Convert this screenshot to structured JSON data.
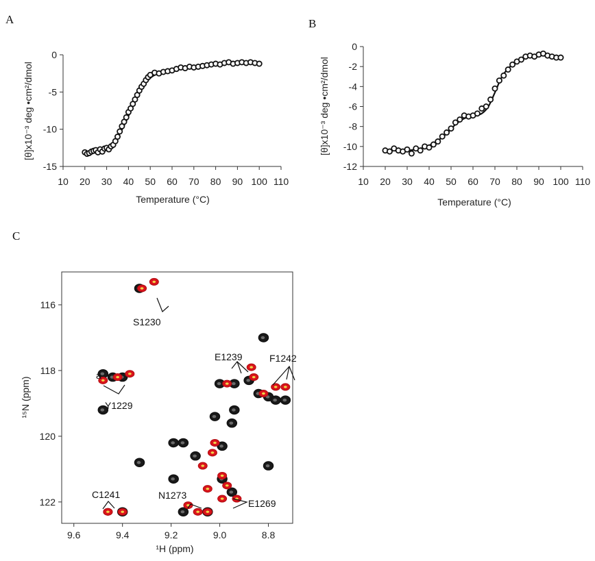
{
  "panel_labels": {
    "a": "A",
    "b": "B",
    "c": "C"
  },
  "colors": {
    "fit": "#111111",
    "marker": "#111111",
    "peak_dark": "#111111",
    "peak_red": "#d9141b",
    "peak_core": "#f0d24a"
  },
  "chart_data": [
    {
      "id": "A",
      "type": "scatter",
      "title": "",
      "xlabel": "Temperature (°C)",
      "ylabel": "[θ]x10⁻³ deg •cm²/dmol",
      "xlim": [
        10,
        110
      ],
      "ylim": [
        -15,
        0
      ],
      "xticks": [
        "10",
        "20",
        "30",
        "40",
        "50",
        "60",
        "70",
        "80",
        "90",
        "100",
        "110"
      ],
      "yticks": [
        "0",
        "-5",
        "-10",
        "-15"
      ],
      "grid": false,
      "series": [
        {
          "kind": "points",
          "x": [
            20,
            21,
            22,
            23,
            24,
            25,
            26,
            27,
            28,
            29,
            30,
            31,
            32,
            33,
            34,
            35,
            36,
            37,
            38,
            39,
            40,
            41,
            42,
            43,
            44,
            45,
            46,
            47,
            48,
            49,
            50,
            52,
            54,
            56,
            58,
            60,
            62,
            64,
            66,
            68,
            70,
            72,
            74,
            76,
            78,
            80,
            82,
            84,
            86,
            88,
            90,
            92,
            94,
            96,
            98,
            100
          ],
          "y": [
            -13.1,
            -13.3,
            -13.2,
            -13.0,
            -12.9,
            -12.8,
            -13.1,
            -12.7,
            -13.0,
            -12.6,
            -12.5,
            -12.7,
            -12.3,
            -12.1,
            -11.6,
            -11.0,
            -10.3,
            -9.6,
            -9.0,
            -8.4,
            -7.7,
            -7.2,
            -6.6,
            -6.0,
            -5.4,
            -4.8,
            -4.3,
            -3.9,
            -3.4,
            -3.0,
            -2.7,
            -2.4,
            -2.5,
            -2.3,
            -2.2,
            -2.1,
            -1.9,
            -1.7,
            -1.8,
            -1.6,
            -1.7,
            -1.6,
            -1.5,
            -1.4,
            -1.3,
            -1.2,
            -1.3,
            -1.1,
            -1.0,
            -1.2,
            -1.1,
            -1.0,
            -1.1,
            -1.0,
            -1.1,
            -1.2
          ]
        },
        {
          "kind": "fit",
          "x": [
            20,
            25,
            30,
            33,
            36,
            39,
            42,
            45,
            48,
            51,
            55,
            60,
            65,
            70,
            75,
            80,
            85,
            90,
            95,
            100
          ],
          "y": [
            -13.0,
            -12.9,
            -12.5,
            -11.9,
            -10.6,
            -8.9,
            -6.9,
            -5.2,
            -3.8,
            -2.9,
            -2.4,
            -2.1,
            -1.8,
            -1.6,
            -1.4,
            -1.2,
            -1.1,
            -1.1,
            -1.0,
            -1.1
          ]
        }
      ]
    },
    {
      "id": "B",
      "type": "scatter",
      "title": "",
      "xlabel": "Temperature (°C)",
      "ylabel": "[θ]x10⁻³ deg •cm²/dmol",
      "xlim": [
        10,
        110
      ],
      "ylim": [
        -12,
        0
      ],
      "xticks": [
        "10",
        "20",
        "30",
        "40",
        "50",
        "60",
        "70",
        "80",
        "90",
        "100",
        "110"
      ],
      "yticks": [
        "0",
        "-2",
        "-4",
        "-6",
        "-8",
        "-10",
        "-12"
      ],
      "grid": false,
      "series": [
        {
          "kind": "points",
          "x": [
            20,
            22,
            24,
            26,
            28,
            30,
            32,
            34,
            36,
            38,
            40,
            42,
            44,
            46,
            48,
            50,
            52,
            54,
            56,
            58,
            60,
            62,
            64,
            66,
            68,
            70,
            72,
            74,
            76,
            78,
            80,
            82,
            84,
            86,
            88,
            90,
            92,
            94,
            96,
            98,
            100
          ],
          "y": [
            -10.4,
            -10.5,
            -10.2,
            -10.4,
            -10.5,
            -10.3,
            -10.7,
            -10.2,
            -10.4,
            -10.0,
            -10.1,
            -9.8,
            -9.5,
            -9.0,
            -8.6,
            -8.2,
            -7.6,
            -7.3,
            -6.9,
            -7.0,
            -6.9,
            -6.7,
            -6.2,
            -6.0,
            -5.3,
            -4.2,
            -3.4,
            -2.9,
            -2.3,
            -1.8,
            -1.5,
            -1.3,
            -1.0,
            -0.9,
            -1.0,
            -0.8,
            -0.7,
            -0.9,
            -1.0,
            -1.1,
            -1.1
          ]
        },
        {
          "kind": "fit",
          "x": [
            20,
            30,
            36,
            40,
            44,
            48,
            52,
            56,
            60,
            64,
            67,
            70,
            73,
            76,
            80,
            84,
            88,
            92,
            96,
            100
          ],
          "y": [
            -10.4,
            -10.4,
            -10.2,
            -9.9,
            -9.4,
            -8.7,
            -7.8,
            -7.2,
            -7.0,
            -6.7,
            -6.0,
            -4.6,
            -3.1,
            -2.2,
            -1.5,
            -1.1,
            -0.9,
            -0.9,
            -1.0,
            -1.1
          ]
        }
      ]
    },
    {
      "id": "C",
      "type": "scatter",
      "title": "",
      "xlabel": "¹H (ppm)",
      "ylabel": "¹⁵N (ppm)",
      "xlim": [
        9.65,
        8.7
      ],
      "ylim": [
        122.65,
        115.0
      ],
      "xticks": [
        "9.6",
        "9.4",
        "9.2",
        "9.0",
        "8.8"
      ],
      "ytick_labels": [
        "116",
        "118",
        "120",
        "122"
      ],
      "grid": false,
      "series": [
        {
          "name": "",
          "kind": "dark",
          "x": [
            9.33,
            9.4,
            9.44,
            9.48,
            9.48,
            9.33,
            9.19,
            9.19,
            9.15,
            9.1,
            8.99,
            9.02,
            9.0,
            8.99,
            8.94,
            8.82,
            8.88,
            8.84,
            8.8,
            8.77,
            8.73,
            8.94,
            8.95,
            9.4,
            9.15,
            9.05,
            8.95,
            8.8
          ],
          "y": [
            115.5,
            118.2,
            118.2,
            118.1,
            119.2,
            120.8,
            120.2,
            121.3,
            122.3,
            120.6,
            120.3,
            119.4,
            118.4,
            121.3,
            118.4,
            117.0,
            118.3,
            118.7,
            118.8,
            118.9,
            118.9,
            119.2,
            119.6,
            122.3,
            120.2,
            122.3,
            121.7,
            120.9
          ]
        },
        {
          "name": "",
          "kind": "red",
          "x": [
            9.32,
            9.27,
            9.42,
            9.48,
            9.46,
            9.37,
            9.46,
            9.4,
            9.13,
            9.09,
            9.05,
            9.02,
            8.97,
            8.87,
            8.86,
            8.82,
            8.77,
            8.73,
            9.07,
            8.99,
            8.97,
            8.93,
            9.05,
            8.99,
            9.03
          ],
          "y": [
            115.5,
            115.3,
            118.2,
            118.3,
            122.3,
            118.1,
            122.3,
            122.3,
            122.1,
            122.3,
            122.3,
            120.2,
            118.4,
            117.9,
            118.2,
            118.7,
            118.5,
            118.5,
            120.9,
            121.2,
            121.5,
            121.9,
            121.6,
            121.9,
            120.5
          ]
        }
      ],
      "annotations": [
        "S1230",
        "Y1229",
        "a",
        "E1239",
        "F1242",
        "C1241",
        "N1273",
        "E1269"
      ]
    }
  ]
}
